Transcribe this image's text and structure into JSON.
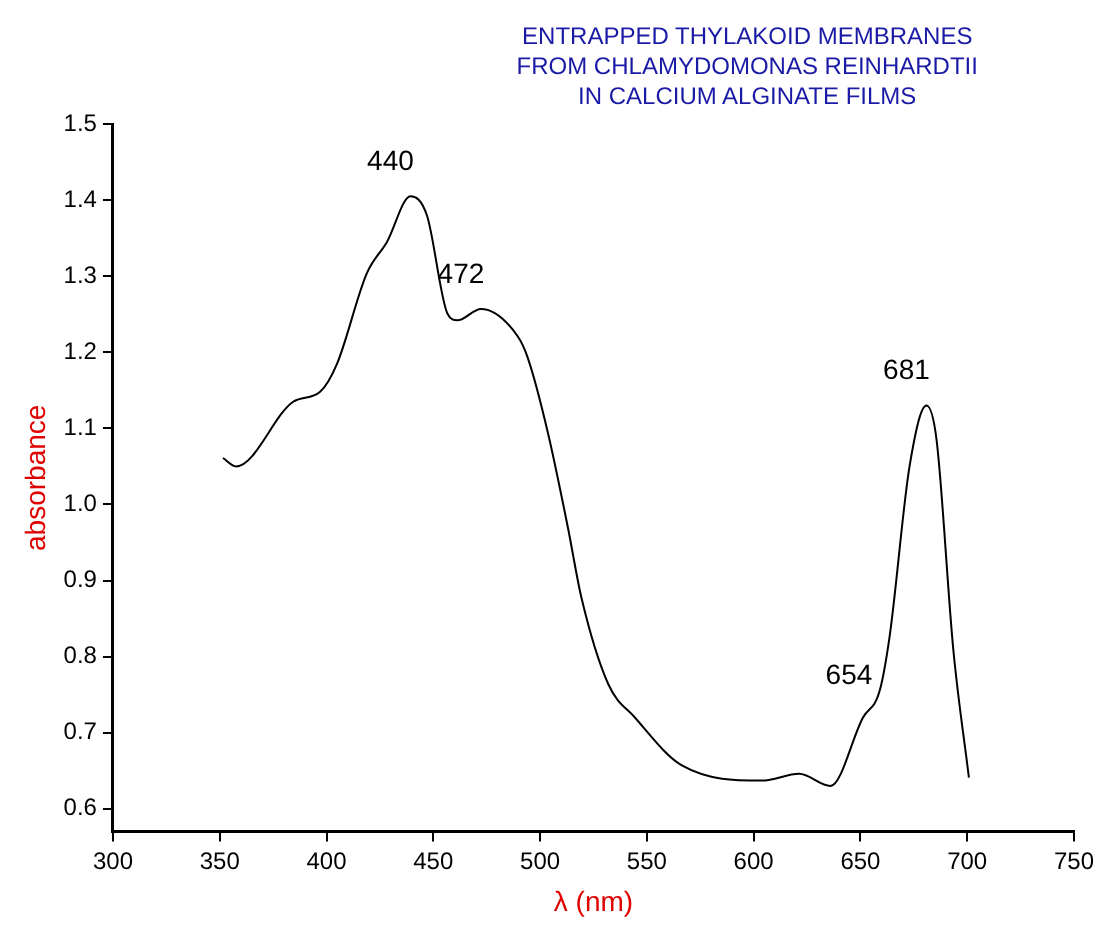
{
  "chart_data": {
    "type": "line",
    "title": "ENTRAPPED THYLAKOID MEMBRANES\nFROM CHLAMYDOMONAS REINHARDTII\nIN CALCIUM ALGINATE FILMS",
    "xlabel": "λ (nm)",
    "ylabel": "absorbance",
    "series": [
      {
        "color": "#000000",
        "x": [
          351.5,
          357.7,
          384.4,
          397,
          404.8,
          418.9,
          428.3,
          439.3,
          447,
          456.6,
          461.3,
          472.3,
          489.5,
          494.2,
          503.6,
          513,
          519.4,
          531.9,
          544.4,
          566.4,
          604,
          621.3,
          636,
          651.2,
          659,
          663.7,
          673,
          680.9,
          685.6,
          693.5,
          700.8
        ],
        "values": [
          1.061,
          1.05,
          1.135,
          1.148,
          1.184,
          1.304,
          1.345,
          1.405,
          1.38,
          1.251,
          1.242,
          1.257,
          1.221,
          1.193,
          1.095,
          0.97,
          0.877,
          0.764,
          0.72,
          0.657,
          0.637,
          0.646,
          0.63,
          0.72,
          0.755,
          0.827,
          1.05,
          1.13,
          1.086,
          0.809,
          0.641
        ]
      }
    ],
    "xlim": [
      300,
      750
    ],
    "xticks": [
      300,
      350,
      400,
      450,
      500,
      550,
      600,
      650,
      700,
      750
    ],
    "ylim": [
      0.57,
      1.5
    ],
    "yticks": [
      0.6,
      0.7,
      0.8,
      0.9,
      {
        "value": 1,
        "label": "1.0"
      },
      1.1,
      1.2,
      1.3,
      1.4,
      1.5
    ],
    "annotations": [
      {
        "text": "440",
        "x": 439.3,
        "y": 1.405
      },
      {
        "text": "472",
        "x": 472.3,
        "y": 1.257
      },
      {
        "text": "654",
        "x": 654,
        "y": 0.73
      },
      {
        "text": "681",
        "x": 680.9,
        "y": 1.13
      }
    ],
    "grid": false,
    "legend": false,
    "marker": "none",
    "line_style": "solid"
  }
}
